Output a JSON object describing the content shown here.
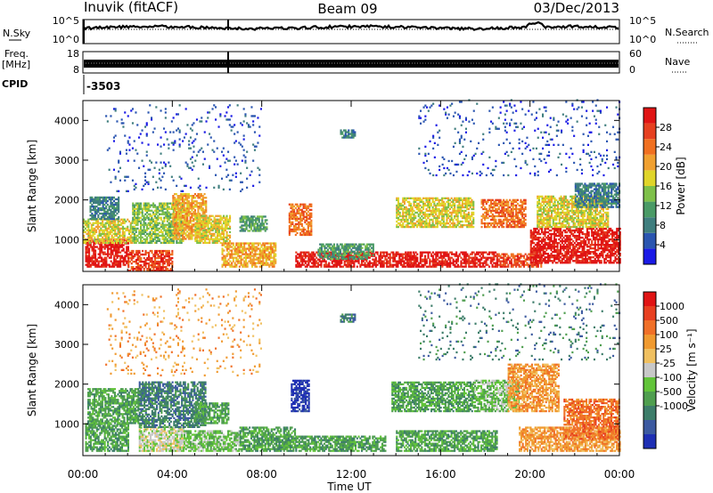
{
  "header": {
    "station": "Inuvik (fitACF)",
    "beam": "Beam 09",
    "date": "03/Dec/2013"
  },
  "strips": {
    "nsky": {
      "label": "N.Sky",
      "left_ticks": [
        "10^5",
        "10^0"
      ],
      "right_ticks": [
        "10^5",
        "10^0"
      ],
      "right_label": "N.Search"
    },
    "freq": {
      "label_top": "Freq.",
      "label_unit": "[MHz]",
      "left_ticks": [
        "18",
        "8"
      ],
      "right_ticks": [
        "60",
        "0"
      ],
      "right_label": "Nave"
    },
    "cpid": {
      "label": "CPID",
      "value": "-3503"
    }
  },
  "chart_data": [
    {
      "type": "heatmap",
      "name": "power",
      "xlabel": "",
      "ylabel": "Slant Range [km]",
      "yticks": [
        "1000",
        "2000",
        "3000",
        "4000"
      ],
      "ylim": [
        200,
        4500
      ],
      "xlim": [
        0,
        24
      ],
      "colorbar": {
        "label": "Power [dB]",
        "ticks": [
          "4",
          "8",
          "12",
          "16",
          "20",
          "24",
          "28"
        ],
        "colors": [
          "#1a1ae6",
          "#2a55b0",
          "#3f7e7e",
          "#4a9a66",
          "#7ec04a",
          "#e0d52a",
          "#f0a030",
          "#f07020",
          "#e64020",
          "#e01414"
        ]
      },
      "regions": [
        {
          "t0": 0.1,
          "t1": 2.0,
          "r0": 300,
          "r1": 1000,
          "level": 9
        },
        {
          "t0": 0.0,
          "t1": 2.2,
          "r0": 900,
          "r1": 1500,
          "level": 5
        },
        {
          "t0": 0.3,
          "t1": 1.6,
          "r0": 1500,
          "r1": 2050,
          "level": 2
        },
        {
          "t0": 2.0,
          "t1": 4.0,
          "r0": 200,
          "r1": 700,
          "level": 8
        },
        {
          "t0": 2.2,
          "t1": 4.5,
          "r0": 900,
          "r1": 1900,
          "level": 4
        },
        {
          "t0": 4.0,
          "t1": 5.5,
          "r0": 1000,
          "r1": 2150,
          "level": 6
        },
        {
          "t0": 5.0,
          "t1": 6.6,
          "r0": 900,
          "r1": 1600,
          "level": 5
        },
        {
          "t0": 6.2,
          "t1": 8.6,
          "r0": 300,
          "r1": 900,
          "level": 6
        },
        {
          "t0": 7.0,
          "t1": 8.2,
          "r0": 1200,
          "r1": 1600,
          "level": 3
        },
        {
          "t0": 9.2,
          "t1": 10.2,
          "r0": 1100,
          "r1": 1900,
          "level": 7
        },
        {
          "t0": 9.5,
          "t1": 14.8,
          "r0": 300,
          "r1": 700,
          "level": 9
        },
        {
          "t0": 10.5,
          "t1": 13.0,
          "r0": 500,
          "r1": 900,
          "level": 3
        },
        {
          "t0": 11.5,
          "t1": 12.2,
          "r0": 3550,
          "r1": 3750,
          "level": 2
        },
        {
          "t0": 14.0,
          "t1": 17.5,
          "r0": 1300,
          "r1": 2050,
          "level": 5
        },
        {
          "t0": 14.5,
          "t1": 18.5,
          "r0": 300,
          "r1": 700,
          "level": 9
        },
        {
          "t0": 17.8,
          "t1": 19.8,
          "r0": 1300,
          "r1": 2000,
          "level": 7
        },
        {
          "t0": 18.5,
          "t1": 20.5,
          "r0": 300,
          "r1": 650,
          "level": 8
        },
        {
          "t0": 20.0,
          "t1": 24.0,
          "r0": 400,
          "r1": 1300,
          "level": 9
        },
        {
          "t0": 20.3,
          "t1": 23.5,
          "r0": 1300,
          "r1": 2100,
          "level": 5
        },
        {
          "t0": 22.0,
          "t1": 24.0,
          "r0": 1800,
          "r1": 2400,
          "level": 2
        },
        {
          "t0": 1.0,
          "t1": 8.0,
          "r0": 2200,
          "r1": 4400,
          "level": 1,
          "sparse": true
        },
        {
          "t0": 15.0,
          "t1": 24.0,
          "r0": 2600,
          "r1": 4500,
          "level": 1,
          "sparse": true
        }
      ]
    },
    {
      "type": "heatmap",
      "name": "velocity",
      "xlabel": "Time UT",
      "ylabel": "Slant Range [km]",
      "yticks": [
        "1000",
        "2000",
        "3000",
        "4000"
      ],
      "ylim": [
        200,
        4500
      ],
      "xlim": [
        0,
        24
      ],
      "xticks": [
        "00:00",
        "04:00",
        "08:00",
        "12:00",
        "16:00",
        "20:00",
        "00:00"
      ],
      "colorbar": {
        "label": "Velocity [m s⁻¹]",
        "ticks": [
          "1000",
          "500",
          "100",
          "25",
          "-25",
          "-100",
          "-500",
          "-1000"
        ],
        "colors": [
          "#1e2fb4",
          "#3c5aa0",
          "#3d7d6a",
          "#4f9e4f",
          "#62c43a",
          "#c8c8c8",
          "#f0c060",
          "#f09a30",
          "#f07028",
          "#e84020",
          "#e01414"
        ]
      },
      "regions": [
        {
          "t0": 0.1,
          "t1": 2.0,
          "r0": 300,
          "r1": 1000,
          "level": 3
        },
        {
          "t0": 0.2,
          "t1": 2.5,
          "r0": 1000,
          "r1": 1900,
          "level": 3
        },
        {
          "t0": 2.5,
          "t1": 4.5,
          "r0": 300,
          "r1": 900,
          "level": 5
        },
        {
          "t0": 2.5,
          "t1": 5.5,
          "r0": 900,
          "r1": 2050,
          "level": 2
        },
        {
          "t0": 4.5,
          "t1": 7.0,
          "r0": 300,
          "r1": 800,
          "level": 4
        },
        {
          "t0": 5.0,
          "t1": 6.5,
          "r0": 1000,
          "r1": 1500,
          "level": 3
        },
        {
          "t0": 7.0,
          "t1": 9.5,
          "r0": 300,
          "r1": 900,
          "level": 3
        },
        {
          "t0": 9.3,
          "t1": 10.1,
          "r0": 1300,
          "r1": 2100,
          "level": 0
        },
        {
          "t0": 9.5,
          "t1": 13.5,
          "r0": 300,
          "r1": 700,
          "level": 3
        },
        {
          "t0": 11.5,
          "t1": 12.2,
          "r0": 3550,
          "r1": 3750,
          "level": 2
        },
        {
          "t0": 13.8,
          "t1": 17.5,
          "r0": 1300,
          "r1": 2050,
          "level": 3
        },
        {
          "t0": 14.0,
          "t1": 18.5,
          "r0": 300,
          "r1": 800,
          "level": 3
        },
        {
          "t0": 17.5,
          "t1": 19.5,
          "r0": 1300,
          "r1": 2100,
          "level": 4
        },
        {
          "t0": 19.0,
          "t1": 21.3,
          "r0": 1300,
          "r1": 2500,
          "level": 7
        },
        {
          "t0": 19.5,
          "t1": 24.0,
          "r0": 300,
          "r1": 900,
          "level": 7
        },
        {
          "t0": 21.5,
          "t1": 24.0,
          "r0": 600,
          "r1": 1600,
          "level": 8
        },
        {
          "t0": 1.0,
          "t1": 8.0,
          "r0": 2200,
          "r1": 4400,
          "level": 7,
          "sparse": true
        },
        {
          "t0": 15.0,
          "t1": 24.0,
          "r0": 2600,
          "r1": 4500,
          "level": 2,
          "sparse": true
        }
      ]
    }
  ]
}
